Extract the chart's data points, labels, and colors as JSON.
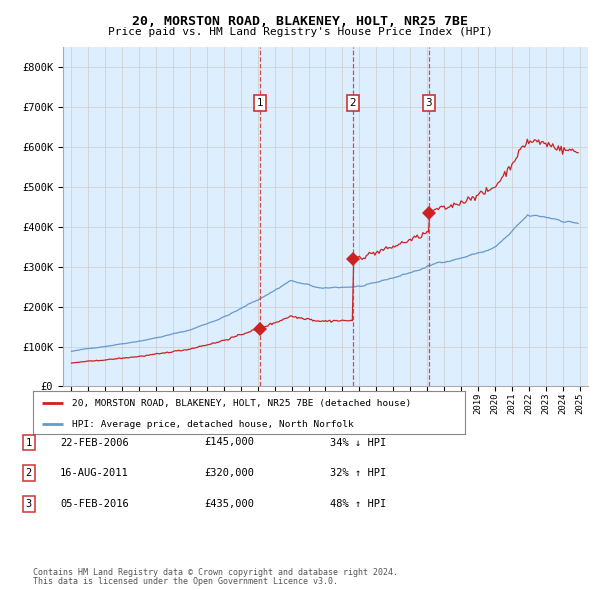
{
  "title_line1": "20, MORSTON ROAD, BLAKENEY, HOLT, NR25 7BE",
  "title_line2": "Price paid vs. HM Land Registry's House Price Index (HPI)",
  "legend_line1": "20, MORSTON ROAD, BLAKENEY, HOLT, NR25 7BE (detached house)",
  "legend_line2": "HPI: Average price, detached house, North Norfolk",
  "footer_line1": "Contains HM Land Registry data © Crown copyright and database right 2024.",
  "footer_line2": "This data is licensed under the Open Government Licence v3.0.",
  "transactions": [
    {
      "num": 1,
      "date": "2006-02-22",
      "price": 145000,
      "pct": "34%",
      "dir": "↓",
      "x_year": 2006.14
    },
    {
      "num": 2,
      "date": "2011-08-16",
      "price": 320000,
      "pct": "32%",
      "dir": "↑",
      "x_year": 2011.62
    },
    {
      "num": 3,
      "date": "2016-02-05",
      "price": 435000,
      "pct": "48%",
      "dir": "↑",
      "x_year": 2016.1
    }
  ],
  "table_rows": [
    {
      "num": 1,
      "date_str": "22-FEB-2006",
      "price_str": "£145,000",
      "pct_str": "34% ↓ HPI"
    },
    {
      "num": 2,
      "date_str": "16-AUG-2011",
      "price_str": "£320,000",
      "pct_str": "32% ↑ HPI"
    },
    {
      "num": 3,
      "date_str": "05-FEB-2016",
      "price_str": "£435,000",
      "pct_str": "48% ↑ HPI"
    }
  ],
  "hpi_color": "#6699cc",
  "price_color": "#cc2222",
  "background_color": "#ddeeff",
  "grid_color": "#cccccc",
  "ylim": [
    0,
    850000
  ],
  "yticks": [
    0,
    100000,
    200000,
    300000,
    400000,
    500000,
    600000,
    700000,
    800000
  ],
  "xlim_start": 1994.5,
  "xlim_end": 2025.5
}
